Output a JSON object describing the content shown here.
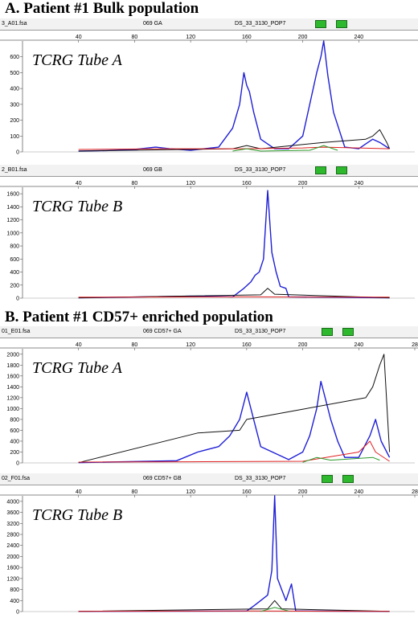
{
  "sections": [
    {
      "title": "A. Patient #1 Bulk population"
    },
    {
      "title": "B. Patient #1 CD57+ enriched population"
    }
  ],
  "panels": [
    {
      "header": {
        "file": "3_A01.fsa",
        "sample": "069 GA",
        "run": "DS_33_3130_POP7"
      },
      "label": "TCRG Tube A",
      "xticks": [
        "40",
        "80",
        "120",
        "160",
        "200",
        "240"
      ],
      "yticks": [
        "0",
        "100",
        "200",
        "300",
        "400",
        "500",
        "600"
      ]
    },
    {
      "header": {
        "file": "2_B01.fsa",
        "sample": "069 GB",
        "run": "DS_33_3130_POP7"
      },
      "label": "TCRG Tube B",
      "xticks": [
        "40",
        "80",
        "120",
        "160",
        "200",
        "240"
      ],
      "yticks": [
        "0",
        "200",
        "400",
        "600",
        "800",
        "1000",
        "1200",
        "1400",
        "1600"
      ]
    },
    {
      "header": {
        "file": "01_E01.fsa",
        "sample": "069 CD57+ GA",
        "run": "DS_33_3130_POP7"
      },
      "label": "TCRG Tube A",
      "xticks": [
        "40",
        "80",
        "120",
        "160",
        "200",
        "240",
        "28"
      ],
      "yticks": [
        "0",
        "200",
        "400",
        "600",
        "800",
        "1000",
        "1200",
        "1400",
        "1600",
        "1800",
        "2000"
      ]
    },
    {
      "header": {
        "file": "02_F01.fsa",
        "sample": "069 CD57+ GB",
        "run": "DS_33_3130_POP7"
      },
      "label": "TCRG Tube B",
      "xticks": [
        "40",
        "80",
        "120",
        "160",
        "200",
        "240",
        "28"
      ],
      "yticks": [
        "0",
        "400",
        "800",
        "1200",
        "1600",
        "2000",
        "2400",
        "2800",
        "3200",
        "3600",
        "4000"
      ]
    }
  ],
  "chart_data": [
    {
      "type": "line",
      "title": "TCRG Tube A",
      "xlim": [
        0,
        280
      ],
      "ylim": [
        0,
        700
      ],
      "series": [
        {
          "color": "#1f1fd6",
          "x": [
            40,
            60,
            80,
            95,
            105,
            120,
            140,
            150,
            155,
            158,
            160,
            162,
            165,
            170,
            180,
            190,
            200,
            205,
            210,
            213,
            215,
            218,
            222,
            230,
            240,
            245,
            250,
            255,
            262
          ],
          "y": [
            5,
            8,
            15,
            30,
            20,
            10,
            30,
            150,
            300,
            500,
            420,
            380,
            250,
            80,
            20,
            20,
            100,
            300,
            500,
            600,
            700,
            480,
            250,
            30,
            20,
            50,
            80,
            60,
            20
          ]
        },
        {
          "color": "#111111",
          "x": [
            40,
            150,
            160,
            170,
            215,
            245,
            250,
            255,
            260,
            262
          ],
          "y": [
            5,
            20,
            40,
            20,
            60,
            80,
            100,
            140,
            60,
            20
          ]
        },
        {
          "color": "#e02020",
          "x": [
            40,
            100,
            160,
            200,
            215,
            240,
            262
          ],
          "y": [
            15,
            20,
            20,
            25,
            30,
            25,
            20
          ]
        },
        {
          "color": "#2a9a2a",
          "x": [
            150,
            160,
            170,
            205,
            215,
            225
          ],
          "y": [
            5,
            20,
            5,
            10,
            40,
            10
          ]
        }
      ]
    },
    {
      "type": "line",
      "title": "TCRG Tube B",
      "xlim": [
        0,
        280
      ],
      "ylim": [
        0,
        1700
      ],
      "series": [
        {
          "color": "#1f1fd6",
          "x": [
            40,
            120,
            150,
            158,
            163,
            166,
            169,
            172,
            175,
            178,
            181,
            184,
            188,
            190,
            262
          ],
          "y": [
            5,
            30,
            20,
            150,
            250,
            350,
            400,
            600,
            1650,
            700,
            400,
            180,
            150,
            20,
            5
          ]
        },
        {
          "color": "#111111",
          "x": [
            40,
            170,
            175,
            180,
            262
          ],
          "y": [
            5,
            50,
            150,
            60,
            5
          ]
        },
        {
          "color": "#e02020",
          "x": [
            40,
            160,
            262
          ],
          "y": [
            15,
            20,
            15
          ]
        }
      ]
    },
    {
      "type": "line",
      "title": "TCRG Tube A",
      "xlim": [
        0,
        280
      ],
      "ylim": [
        0,
        2100
      ],
      "series": [
        {
          "color": "#1f1fd6",
          "x": [
            40,
            110,
            125,
            140,
            148,
            155,
            160,
            163,
            166,
            170,
            190,
            200,
            205,
            210,
            213,
            216,
            220,
            225,
            230,
            240,
            248,
            252,
            256,
            262
          ],
          "y": [
            5,
            40,
            200,
            300,
            500,
            800,
            1300,
            1000,
            700,
            300,
            60,
            200,
            500,
            1000,
            1500,
            1200,
            800,
            400,
            100,
            100,
            500,
            800,
            400,
            100
          ]
        },
        {
          "color": "#111111",
          "x": [
            40,
            125,
            155,
            160,
            245,
            250,
            255,
            258,
            262
          ],
          "y": [
            5,
            550,
            600,
            800,
            1200,
            1400,
            1800,
            2000,
            200
          ]
        },
        {
          "color": "#e02020",
          "x": [
            40,
            120,
            200,
            240,
            248,
            252,
            262
          ],
          "y": [
            15,
            20,
            30,
            200,
            400,
            200,
            30
          ]
        },
        {
          "color": "#2a9a2a",
          "x": [
            200,
            210,
            220,
            250,
            255
          ],
          "y": [
            10,
            100,
            50,
            100,
            50
          ]
        }
      ]
    },
    {
      "type": "line",
      "title": "TCRG Tube B",
      "xlim": [
        0,
        280
      ],
      "ylim": [
        0,
        4200
      ],
      "series": [
        {
          "color": "#1f1fd6",
          "x": [
            40,
            160,
            165,
            170,
            175,
            178,
            180,
            182,
            185,
            188,
            192,
            195,
            262
          ],
          "y": [
            5,
            20,
            200,
            400,
            600,
            1500,
            4200,
            1200,
            800,
            400,
            1000,
            20,
            5
          ]
        },
        {
          "color": "#111111",
          "x": [
            40,
            175,
            180,
            185,
            262
          ],
          "y": [
            5,
            100,
            400,
            100,
            5
          ]
        },
        {
          "color": "#e02020",
          "x": [
            40,
            160,
            262
          ],
          "y": [
            10,
            20,
            10
          ]
        },
        {
          "color": "#2a9a2a",
          "x": [
            170,
            180,
            190
          ],
          "y": [
            5,
            150,
            20
          ]
        }
      ]
    }
  ]
}
